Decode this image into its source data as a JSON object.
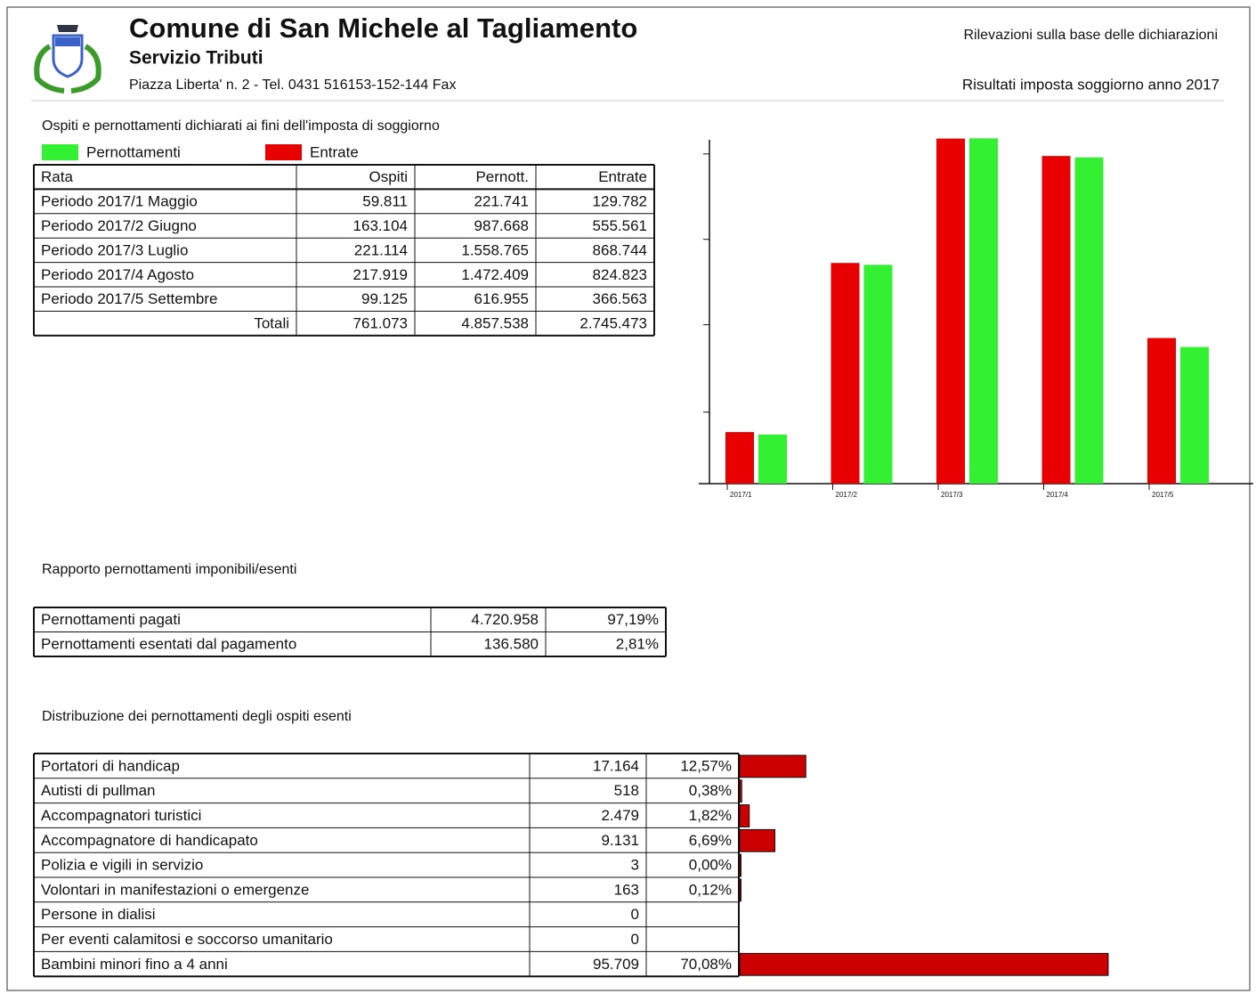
{
  "header": {
    "title": "Comune di San Michele al Tagliamento",
    "subtitle": "Servizio Tributi",
    "address": "Piazza Liberta' n. 2 - Tel. 0431 516153-152-144  Fax",
    "note": "Rilevazioni sulla base delle dichiarazioni",
    "report": "Risultati imposta soggiorno anno 2017"
  },
  "section1": {
    "title": "Ospiti e pernottamenti dichiarati ai fini dell'imposta di soggiorno"
  },
  "table1": {
    "columns": [
      "Rata",
      "Ospiti",
      "Pernott.",
      "Entrate"
    ],
    "rows": [
      [
        "Periodo 2017/1 Maggio",
        "59.811",
        "221.741",
        "129.782"
      ],
      [
        "Periodo 2017/2 Giugno",
        "163.104",
        "987.668",
        "555.561"
      ],
      [
        "Periodo 2017/3 Luglio",
        "221.114",
        "1.558.765",
        "868.744"
      ],
      [
        "Periodo 2017/4 Agosto",
        "217.919",
        "1.472.409",
        "824.823"
      ],
      [
        "Periodo 2017/5 Settembre",
        "99.125",
        "616.955",
        "366.563"
      ],
      [
        "Totali",
        "761.073",
        "4.857.538",
        "2.745.473"
      ]
    ]
  },
  "chart_data": {
    "type": "bar",
    "categories": [
      "2017/1",
      "2017/2",
      "2017/3",
      "2017/4",
      "2017/5"
    ],
    "series": [
      {
        "name": "Entrate",
        "color": "#e80000",
        "values": [
          129782,
          555561,
          868744,
          824823,
          366563
        ]
      },
      {
        "name": "Pernottamenti",
        "color": "#33f033",
        "axis": "y2",
        "values": [
          221741,
          987668,
          1558765,
          1472409,
          616955
        ]
      }
    ],
    "ylim": [
      0,
      870000
    ],
    "yticks": [
      180000,
      400000,
      615000,
      830000
    ],
    "y2lim": [
      0,
      1560000
    ]
  },
  "section2": {
    "title": "Rapporto pernottamenti imponibili/esenti"
  },
  "table2": {
    "rows": [
      [
        "Pernottamenti pagati",
        "4.720.958",
        "97,19%"
      ],
      [
        "Pernottamenti esentati dal pagamento",
        "136.580",
        "2,81%"
      ]
    ]
  },
  "section3": {
    "title": "Distribuzione dei pernottamenti degli ospiti esenti"
  },
  "table3": {
    "rows": [
      {
        "label": "Portatori di handicap",
        "value": "17.164",
        "percent": 12.57,
        "percent_label": "12,57%"
      },
      {
        "label": "Autisti di pullman",
        "value": "518",
        "percent": 0.38,
        "percent_label": "0,38%"
      },
      {
        "label": "Accompagnatori turistici",
        "value": "2.479",
        "percent": 1.82,
        "percent_label": "1,82%"
      },
      {
        "label": "Accompagnatore di handicapato",
        "value": "9.131",
        "percent": 6.69,
        "percent_label": "6,69%"
      },
      {
        "label": "Polizia e vigili in servizio",
        "value": "3",
        "percent": 0.0,
        "percent_label": "0,00%"
      },
      {
        "label": "Volontari in manifestazioni o emergenze",
        "value": "163",
        "percent": 0.12,
        "percent_label": "0,12%"
      },
      {
        "label": "Persone in dialisi",
        "value": "0"
      },
      {
        "label": "Per eventi calamitosi e soccorso umanitario",
        "value": "0"
      },
      {
        "label": "Bambini minori fino a 4 anni",
        "value": "95.709",
        "percent": 70.08,
        "percent_label": "70,08%"
      }
    ]
  }
}
